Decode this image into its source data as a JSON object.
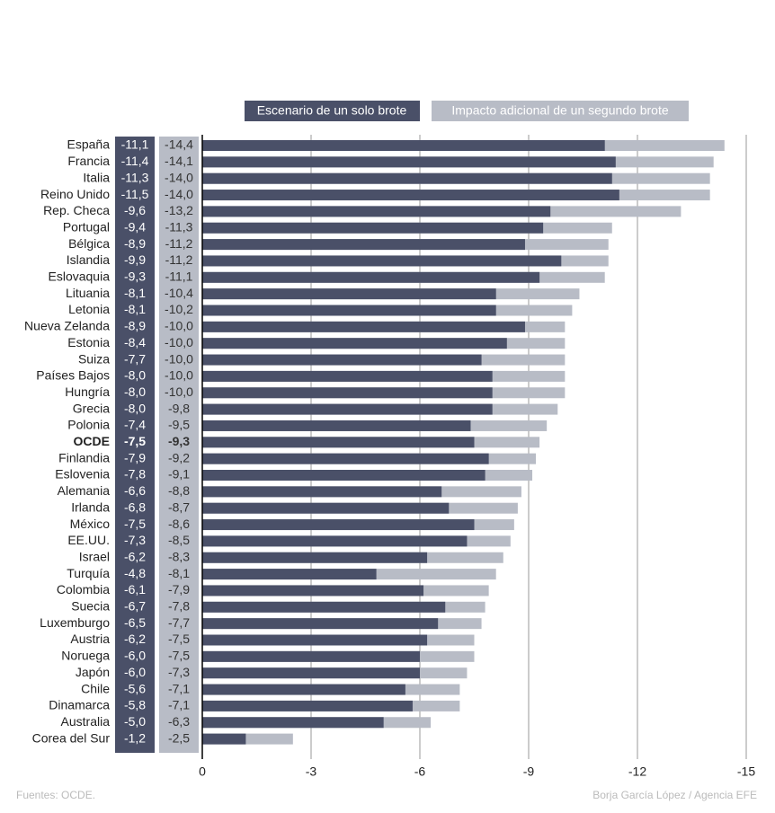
{
  "chart_data": {
    "type": "bar",
    "categories": [
      "España",
      "Francia",
      "Italia",
      "Reino Unido",
      "Rep. Checa",
      "Portugal",
      "Bélgica",
      "Islandia",
      "Eslovaquia",
      "Lituania",
      "Letonia",
      "Nueva Zelanda",
      "Estonia",
      "Suiza",
      "Países Bajos",
      "Hungría",
      "Grecia",
      "Polonia",
      "OCDE",
      "Finlandia",
      "Eslovenia",
      "Alemania",
      "Irlanda",
      "México",
      "EE.UU.",
      "Israel",
      "Turquía",
      "Colombia",
      "Suecia",
      "Luxemburgo",
      "Austria",
      "Noruega",
      "Japón",
      "Chile",
      "Dinamarca",
      "Australia",
      "Corea del Sur"
    ],
    "series": [
      {
        "name": "Escenario de un solo brote",
        "color": "#4a5068",
        "values": [
          -11.1,
          -11.4,
          -11.3,
          -11.5,
          -9.6,
          -9.4,
          -8.9,
          -9.9,
          -9.3,
          -8.1,
          -8.1,
          -8.9,
          -8.4,
          -7.7,
          -8.0,
          -8.0,
          -8.0,
          -7.4,
          -7.5,
          -7.9,
          -7.8,
          -6.6,
          -6.8,
          -7.5,
          -7.3,
          -6.2,
          -4.8,
          -6.1,
          -6.7,
          -6.5,
          -6.2,
          -6.0,
          -6.0,
          -5.6,
          -5.8,
          -5.0,
          -1.2
        ],
        "value_labels": [
          "-11,1",
          "-11,4",
          "-11,3",
          "-11,5",
          "-9,6",
          "-9,4",
          "-8,9",
          "-9,9",
          "-9,3",
          "-8,1",
          "-8,1",
          "-8,9",
          "-8,4",
          "-7,7",
          "-8,0",
          "-8,0",
          "-8,0",
          "-7,4",
          "-7,5",
          "-7,9",
          "-7,8",
          "-6,6",
          "-6,8",
          "-7,5",
          "-7,3",
          "-6,2",
          "-4,8",
          "-6,1",
          "-6,7",
          "-6,5",
          "-6,2",
          "-6,0",
          "-6,0",
          "-5,6",
          "-5,8",
          "-5,0",
          "-1,2"
        ]
      },
      {
        "name": "Impacto adicional de un segundo brote",
        "color": "#b8bcc6",
        "values": [
          -14.4,
          -14.1,
          -14.0,
          -14.0,
          -13.2,
          -11.3,
          -11.2,
          -11.2,
          -11.1,
          -10.4,
          -10.2,
          -10.0,
          -10.0,
          -10.0,
          -10.0,
          -10.0,
          -9.8,
          -9.5,
          -9.3,
          -9.2,
          -9.1,
          -8.8,
          -8.7,
          -8.6,
          -8.5,
          -8.3,
          -8.1,
          -7.9,
          -7.8,
          -7.7,
          -7.5,
          -7.5,
          -7.3,
          -7.1,
          -7.1,
          -6.3,
          -2.5
        ],
        "value_labels": [
          "-14,4",
          "-14,1",
          "-14,0",
          "-14,0",
          "-13,2",
          "-11,3",
          "-11,2",
          "-11,2",
          "-11,1",
          "-10,4",
          "-10,2",
          "-10,0",
          "-10,0",
          "-10,0",
          "-10,0",
          "-10,0",
          "-9,8",
          "-9,5",
          "-9,3",
          "-9,2",
          "-9,1",
          "-8,8",
          "-8,7",
          "-8,6",
          "-8,5",
          "-8,3",
          "-8,1",
          "-7,9",
          "-7,8",
          "-7,7",
          "-7,5",
          "-7,5",
          "-7,3",
          "-7,1",
          "-7,1",
          "-6,3",
          "-2,5"
        ]
      }
    ],
    "xlim": [
      0,
      -15
    ],
    "xticks": [
      0,
      -3,
      -6,
      -9,
      -12,
      -15
    ],
    "grid": true,
    "source": "Fuentes: OCDE.",
    "credit": "Borja García López / Agencia EFE"
  }
}
